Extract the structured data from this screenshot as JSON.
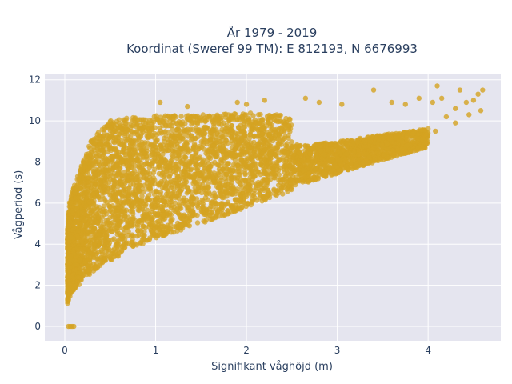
{
  "chart_data": {
    "type": "scatter",
    "title_lines": [
      "År 1979 - 2019",
      "Koordinat (Sweref 99 TM): E 812193, N 6676993"
    ],
    "xlabel": "Signifikant våghöjd (m)",
    "ylabel": "Vågperiod (s)",
    "xlim": [
      -0.22,
      4.8
    ],
    "ylim": [
      -0.7,
      12.3
    ],
    "xticks": [
      0,
      1,
      2,
      3,
      4
    ],
    "yticks": [
      0,
      2,
      4,
      6,
      8,
      10,
      12
    ],
    "grid": true,
    "background_color": "#e5e5ef",
    "marker_color": "#d4a321",
    "density_envelope": {
      "x": [
        0.03,
        0.05,
        0.1,
        0.2,
        0.3,
        0.5,
        0.75,
        1.0,
        1.5,
        2.0,
        2.5,
        3.0,
        3.5,
        4.0
      ],
      "y_lower": [
        1.1,
        1.4,
        1.8,
        2.2,
        2.6,
        3.2,
        3.8,
        4.3,
        5.0,
        5.8,
        6.6,
        7.3,
        8.0,
        8.6
      ],
      "y_upper": [
        4.8,
        6.0,
        6.8,
        8.0,
        9.2,
        10.0,
        10.2,
        10.3,
        10.3,
        10.4,
        10.3,
        10.1,
        10.2,
        10.3
      ]
    },
    "outliers": [
      {
        "x": 0.04,
        "y": 0.0
      },
      {
        "x": 0.06,
        "y": 0.0
      },
      {
        "x": 0.08,
        "y": 0.0
      },
      {
        "x": 0.1,
        "y": 0.0
      },
      {
        "x": 1.05,
        "y": 10.9
      },
      {
        "x": 1.35,
        "y": 10.7
      },
      {
        "x": 1.9,
        "y": 10.9
      },
      {
        "x": 2.0,
        "y": 10.8
      },
      {
        "x": 2.2,
        "y": 11.0
      },
      {
        "x": 2.65,
        "y": 11.1
      },
      {
        "x": 2.8,
        "y": 10.9
      },
      {
        "x": 3.05,
        "y": 10.8
      },
      {
        "x": 3.4,
        "y": 11.5
      },
      {
        "x": 3.6,
        "y": 10.9
      },
      {
        "x": 3.75,
        "y": 10.8
      },
      {
        "x": 3.9,
        "y": 11.1
      },
      {
        "x": 4.05,
        "y": 10.9
      },
      {
        "x": 4.1,
        "y": 11.7
      },
      {
        "x": 4.15,
        "y": 11.1
      },
      {
        "x": 4.2,
        "y": 10.2
      },
      {
        "x": 4.3,
        "y": 10.6
      },
      {
        "x": 4.35,
        "y": 11.5
      },
      {
        "x": 4.42,
        "y": 10.9
      },
      {
        "x": 4.45,
        "y": 10.3
      },
      {
        "x": 4.5,
        "y": 11.0
      },
      {
        "x": 4.55,
        "y": 11.3
      },
      {
        "x": 4.6,
        "y": 11.5
      },
      {
        "x": 4.58,
        "y": 10.5
      },
      {
        "x": 4.3,
        "y": 9.9
      },
      {
        "x": 4.08,
        "y": 9.5
      },
      {
        "x": 3.95,
        "y": 9.3
      }
    ]
  }
}
